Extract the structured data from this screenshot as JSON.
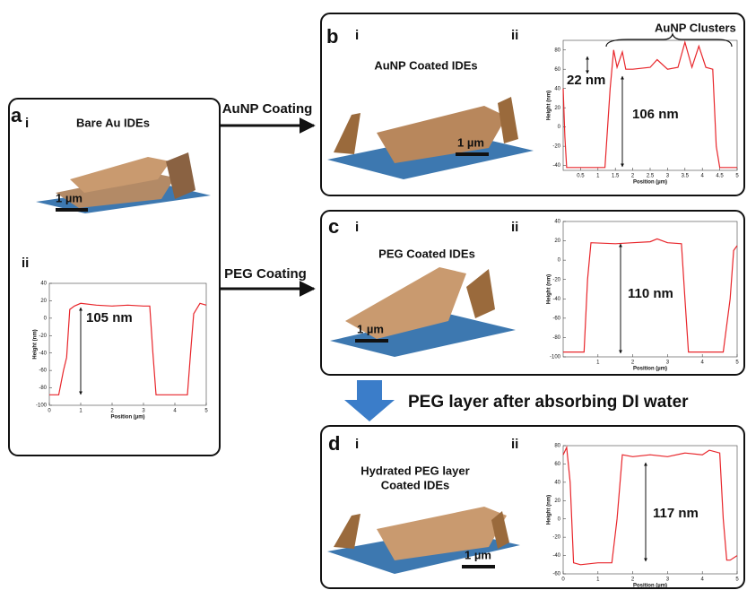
{
  "arrows": [
    "AuNP Coating",
    "PEG Coating",
    "PEG layer after absorbing DI water"
  ],
  "panel_a": {
    "letter": "a",
    "sub_i": "i",
    "title": "Bare Au IDEs",
    "scale_bar": "1 µm",
    "sub_ii": "ii",
    "profile": {
      "xlabel": "Position (µm)",
      "ylabel": "Height (nm)",
      "xlim": [
        0,
        5
      ],
      "ylim": [
        -100,
        40
      ],
      "xticks": [
        0,
        1,
        2,
        3,
        4,
        5
      ],
      "yticks": [
        -100,
        -80,
        -60,
        -40,
        -20,
        0,
        20,
        40
      ],
      "x": [
        0,
        0.3,
        0.45,
        0.55,
        0.65,
        0.8,
        1.0,
        1.5,
        2,
        2.5,
        3,
        3.2,
        3.3,
        3.4,
        4.4,
        4.5,
        4.6,
        4.8,
        5
      ],
      "y": [
        -88,
        -88,
        -60,
        -45,
        10,
        14,
        17,
        15,
        14,
        15,
        14,
        14,
        -40,
        -88,
        -88,
        -40,
        5,
        17,
        15
      ],
      "annotations": [
        "105 nm"
      ]
    }
  },
  "panel_b": {
    "letter": "b",
    "sub_i": "i",
    "sub_ii": "ii",
    "title": "AuNP Coated IDEs",
    "scale_bar": "1 µm",
    "profile": {
      "xlabel": "Position (µm)",
      "ylabel": "Height (nm)",
      "xlim": [
        0,
        5
      ],
      "ylim": [
        -45,
        90
      ],
      "xticks": [
        0.5,
        1,
        1.5,
        2,
        2.5,
        3,
        3.5,
        4,
        4.5,
        5
      ],
      "yticks": [
        -40,
        -20,
        0,
        20,
        40,
        60,
        80
      ],
      "x": [
        0,
        0.05,
        0.1,
        1.2,
        1.35,
        1.45,
        1.55,
        1.7,
        1.8,
        2,
        2.5,
        2.7,
        3,
        3.3,
        3.5,
        3.7,
        3.9,
        4.1,
        4.3,
        4.4,
        4.5,
        5
      ],
      "y": [
        40,
        -10,
        -42,
        -42,
        40,
        80,
        62,
        78,
        60,
        60,
        62,
        70,
        60,
        62,
        88,
        62,
        84,
        62,
        60,
        -20,
        -42,
        -42
      ],
      "annotations": [
        "AuNP Clusters",
        "22 nm",
        "106 nm"
      ]
    }
  },
  "panel_c": {
    "letter": "c",
    "sub_i": "i",
    "sub_ii": "ii",
    "title": "PEG Coated IDEs",
    "scale_bar": "1 µm",
    "profile": {
      "xlabel": "Position (µm)",
      "ylabel": "Height (nm)",
      "xlim": [
        0,
        5
      ],
      "ylim": [
        -100,
        40
      ],
      "xticks": [
        1,
        2,
        3,
        4,
        5
      ],
      "yticks": [
        -100,
        -80,
        -60,
        -40,
        -20,
        0,
        20,
        40
      ],
      "x": [
        0,
        0.6,
        0.7,
        0.8,
        1.5,
        2,
        2.5,
        2.7,
        3,
        3.4,
        3.5,
        3.6,
        4.6,
        4.8,
        4.9,
        5
      ],
      "y": [
        -95,
        -95,
        -20,
        18,
        17,
        18,
        19,
        22,
        18,
        17,
        -40,
        -95,
        -95,
        -40,
        10,
        15
      ],
      "annotations": [
        "110 nm"
      ]
    }
  },
  "panel_d": {
    "letter": "d",
    "sub_i": "i",
    "sub_ii": "ii",
    "title": [
      "Hydrated PEG layer",
      "Coated IDEs"
    ],
    "scale_bar": "1 µm",
    "profile": {
      "xlabel": "Position (µm)",
      "ylabel": "Height (nm)",
      "xlim": [
        0,
        5
      ],
      "ylim": [
        -60,
        80
      ],
      "xticks": [
        0,
        1,
        2,
        3,
        4,
        5
      ],
      "yticks": [
        -60,
        -40,
        -20,
        0,
        20,
        40,
        60,
        80
      ],
      "x": [
        0,
        0.1,
        0.2,
        0.3,
        0.5,
        1,
        1.4,
        1.55,
        1.7,
        2,
        2.5,
        3,
        3.5,
        4,
        4.2,
        4.5,
        4.6,
        4.7,
        4.8,
        5
      ],
      "y": [
        70,
        78,
        40,
        -48,
        -50,
        -48,
        -48,
        0,
        70,
        68,
        70,
        68,
        72,
        70,
        75,
        72,
        0,
        -45,
        -45,
        -40
      ],
      "annotations": [
        "117 nm"
      ]
    }
  }
}
